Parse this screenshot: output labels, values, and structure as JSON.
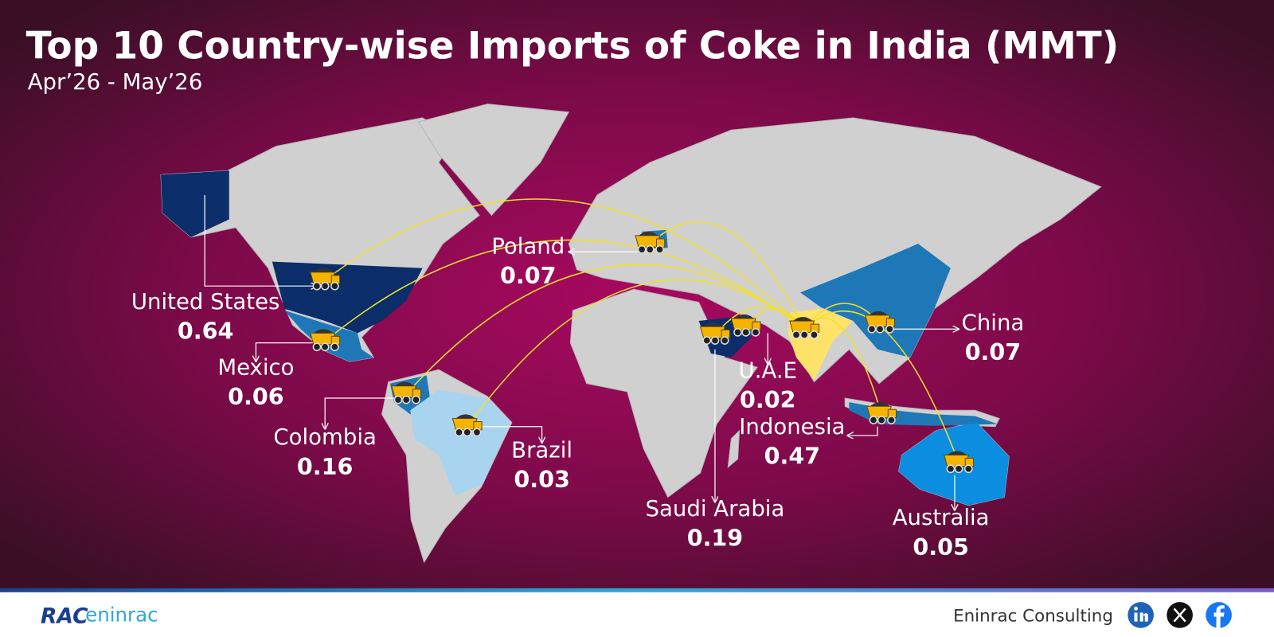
{
  "header": {
    "title": "Top 10 Country-wise Imports of Coke in India (MMT)",
    "subtitle": "Apr’26 - May’26"
  },
  "countries": [
    {
      "name": "United States",
      "value": 0.64
    },
    {
      "name": "Mexico",
      "value": 0.06
    },
    {
      "name": "Colombia",
      "value": 0.16
    },
    {
      "name": "Brazil",
      "value": 0.03
    },
    {
      "name": "Poland",
      "value": 0.07
    },
    {
      "name": "Saudi Arabia",
      "value": 0.19
    },
    {
      "name": "U.A.E",
      "value": 0.02
    },
    {
      "name": "Indonesia",
      "value": 0.47
    },
    {
      "name": "China",
      "value": 0.07
    },
    {
      "name": "Australia",
      "value": 0.05
    }
  ],
  "footer": {
    "logo_mark": "RAC",
    "logo_name": "eninrac",
    "company": "Eninrac Consulting"
  }
}
